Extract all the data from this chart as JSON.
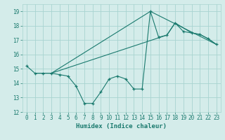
{
  "xlabel": "Humidex (Indice chaleur)",
  "bg_color": "#d4ecea",
  "grid_color": "#a8d4d0",
  "line_color": "#1a7a6e",
  "xlim": [
    -0.5,
    23.5
  ],
  "ylim": [
    12,
    19.5
  ],
  "yticks": [
    12,
    13,
    14,
    15,
    16,
    17,
    18,
    19
  ],
  "xticks": [
    0,
    1,
    2,
    3,
    4,
    5,
    6,
    7,
    8,
    9,
    10,
    11,
    12,
    13,
    14,
    15,
    16,
    17,
    18,
    19,
    20,
    21,
    22,
    23
  ],
  "line1_x": [
    0,
    1,
    2,
    3,
    4,
    5,
    6,
    7,
    8,
    9,
    10,
    11,
    12,
    13,
    14,
    15,
    16,
    17,
    18,
    19,
    20,
    21,
    22,
    23
  ],
  "line1_y": [
    15.2,
    14.7,
    14.7,
    14.7,
    14.6,
    14.5,
    13.8,
    12.6,
    12.6,
    13.4,
    14.3,
    14.5,
    14.3,
    13.6,
    13.6,
    19.0,
    17.2,
    17.35,
    18.2,
    17.6,
    17.5,
    17.4,
    17.1,
    16.7
  ],
  "line2_x": [
    1,
    3,
    15,
    23
  ],
  "line2_y": [
    14.7,
    14.7,
    19.0,
    16.7
  ],
  "line3_x": [
    1,
    3,
    17,
    18,
    20,
    21,
    22,
    23
  ],
  "line3_y": [
    14.7,
    14.7,
    17.35,
    18.2,
    17.5,
    17.4,
    17.1,
    16.7
  ]
}
